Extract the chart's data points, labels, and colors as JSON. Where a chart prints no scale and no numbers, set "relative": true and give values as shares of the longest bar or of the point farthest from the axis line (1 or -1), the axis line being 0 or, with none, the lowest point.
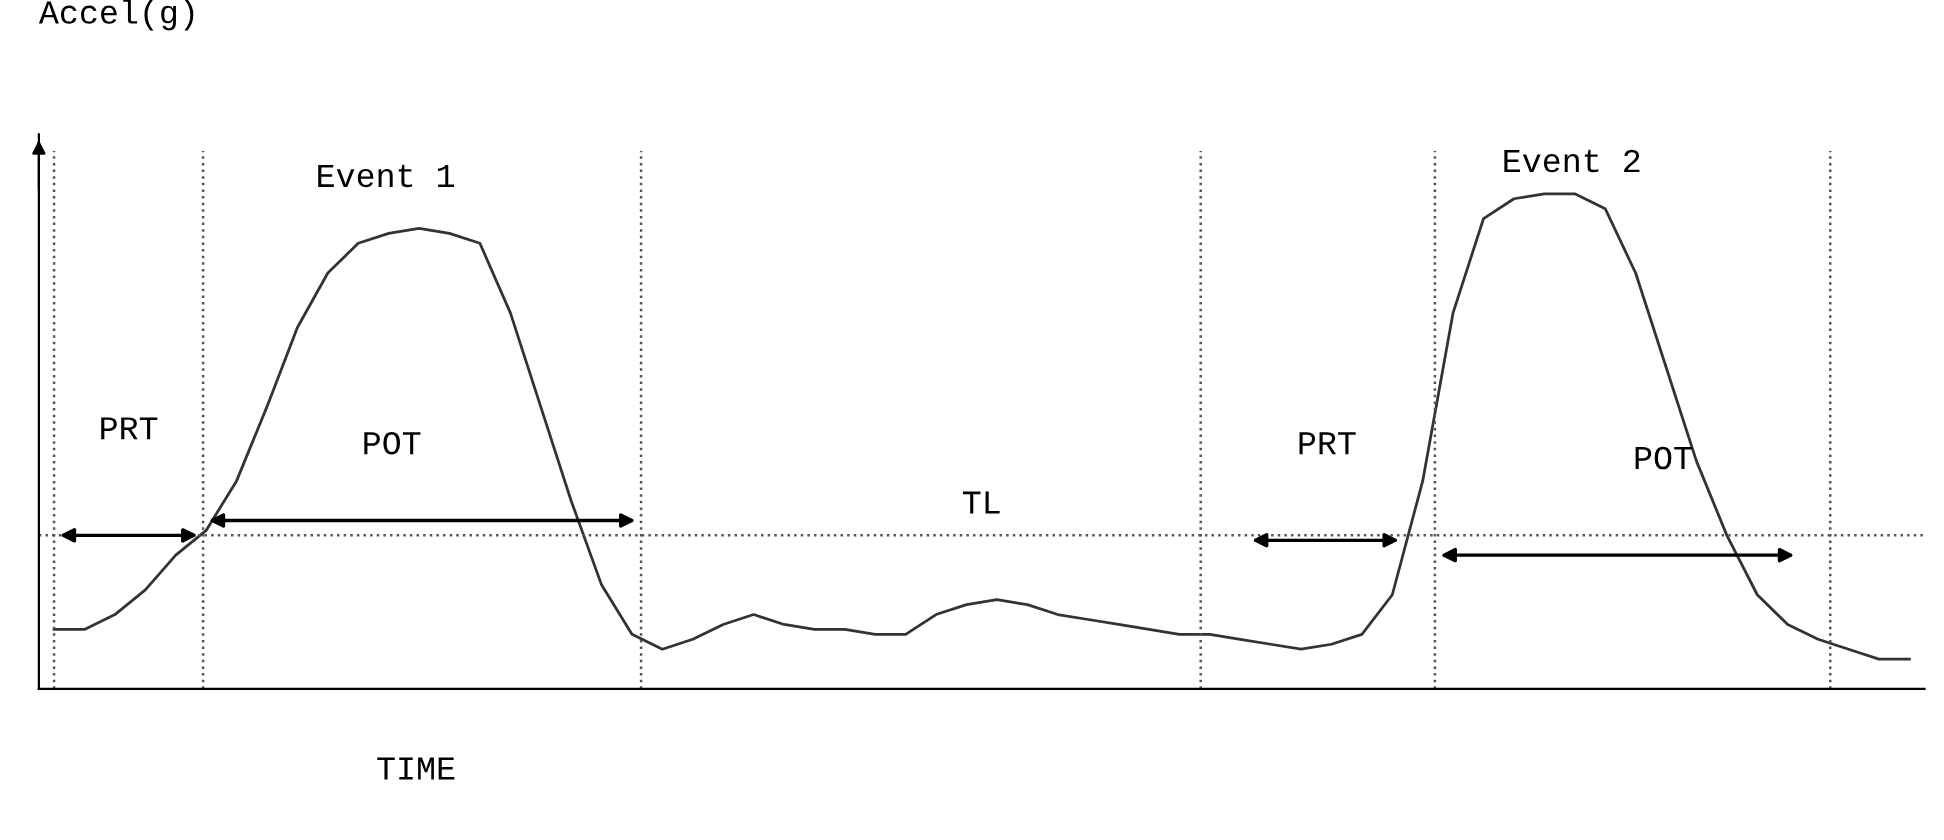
{
  "chart_data": {
    "type": "line",
    "relative": true,
    "xlabel": "TIME",
    "ylabel": "Accel(g)",
    "color": "#333333",
    "grid": false,
    "marker": "none",
    "line_style": "solid",
    "categories": [
      null,
      null,
      null,
      null,
      null,
      null,
      null,
      null,
      null,
      null,
      null,
      null,
      null,
      null,
      null,
      null,
      null,
      null,
      null,
      null,
      null,
      null,
      null,
      null,
      null,
      null,
      null,
      null,
      null,
      null,
      null,
      null,
      null,
      null,
      null,
      null,
      null,
      null,
      null,
      null,
      null,
      null,
      null,
      null,
      null,
      null,
      null,
      null,
      null,
      null,
      null,
      null,
      null,
      null,
      null,
      null,
      null,
      null,
      null,
      null,
      null,
      null
    ],
    "values": [
      0.12,
      0.12,
      0.15,
      0.2,
      0.27,
      0.32,
      0.42,
      0.57,
      0.73,
      0.84,
      0.9,
      0.92,
      0.93,
      0.92,
      0.9,
      0.76,
      0.57,
      0.38,
      0.21,
      0.11,
      0.08,
      0.1,
      0.13,
      0.15,
      0.13,
      0.12,
      0.12,
      0.11,
      0.11,
      0.15,
      0.17,
      0.18,
      0.17,
      0.15,
      0.14,
      0.13,
      0.12,
      0.11,
      0.11,
      0.1,
      0.09,
      0.08,
      0.09,
      0.11,
      0.19,
      0.42,
      0.76,
      0.95,
      0.99,
      1,
      1,
      0.97,
      0.84,
      0.65,
      0.46,
      0.31,
      0.19,
      0.13,
      0.1,
      0.08,
      0.06,
      0.06
    ],
    "ref_lines": [
      {
        "axis": "y",
        "value": 0.31,
        "line_style": "dotted",
        "color": "#555555"
      }
    ],
    "annotations": [
      "Event 1",
      "Event 2",
      "PRT",
      "POT",
      "TL",
      "PRT",
      "POT"
    ]
  }
}
